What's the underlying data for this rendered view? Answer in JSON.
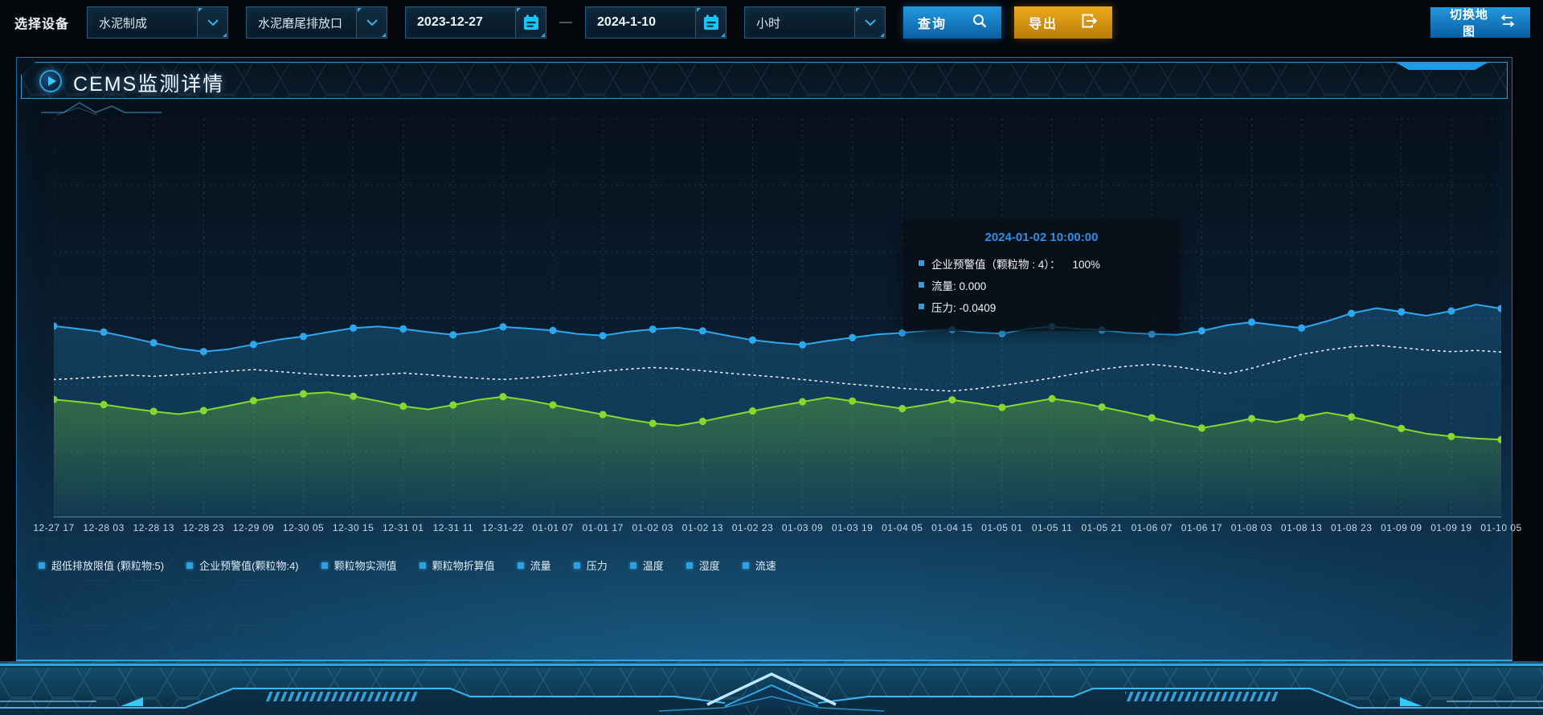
{
  "toolbar": {
    "device_label": "选择设备",
    "selects": [
      {
        "value": "水泥制成"
      },
      {
        "value": "水泥磨尾排放口"
      }
    ],
    "date_start": "2023-12-27",
    "date_separator": "—",
    "date_end": "2024-1-10",
    "interval_select": {
      "value": "小时"
    },
    "query_label": "查询",
    "export_label": "导出",
    "switch_map_label": "切换地图"
  },
  "panel": {
    "title": "CEMS监测详情"
  },
  "tooltip": {
    "title": "2024-01-02 10:00:00",
    "rows": [
      {
        "text": "企业预警值（颗粒物 : 4）：    100%"
      },
      {
        "text": "流量: 0.000"
      },
      {
        "text": "压力: -0.0409"
      }
    ],
    "marker_color": "#2e9fe0"
  },
  "chart_data": {
    "type": "line",
    "title": "CEMS监测详情",
    "x_labels": [
      "12-27 17",
      "12-28 03",
      "12-28 13",
      "12-28 23",
      "12-29 09",
      "12-30 05",
      "12-30 15",
      "12-31 01",
      "12-31 11",
      "12-31-22",
      "01-01 07",
      "01-01 17",
      "01-02 03",
      "01-02 13",
      "01-02 23",
      "01-03 09",
      "01-03 19",
      "01-04 05",
      "01-04 15",
      "01-05 01",
      "01-05 11",
      "01-05 21",
      "01-06 07",
      "01-06 17",
      "01-08 03",
      "01-08 13",
      "01-08 23",
      "01-09 09",
      "01-09 19",
      "01-10 05"
    ],
    "legend": [
      "超低排放限值 (颗粒物:5)",
      "企业预警值(颗粒物:4)",
      "颗粒物实测值",
      "颗粒物折算值",
      "流量",
      "压力",
      "温度",
      "湿度",
      "流速"
    ],
    "legend_position": "bottom",
    "grid": true,
    "y_axis_labels_visible": false,
    "y_unit": "estimated-percent-of-plot-height",
    "series": [
      {
        "name": "series-blue-solid",
        "color": "#2da7ee",
        "style": "solid",
        "area": true,
        "dots": true,
        "values": [
          48.0,
          47.3,
          46.5,
          45.2,
          43.8,
          42.4,
          41.6,
          42.2,
          43.4,
          44.6,
          45.4,
          46.5,
          47.5,
          47.9,
          47.3,
          46.5,
          45.8,
          46.6,
          47.8,
          47.4,
          46.9,
          46.0,
          45.6,
          46.6,
          47.2,
          47.6,
          46.8,
          45.6,
          44.5,
          43.8,
          43.3,
          44.3,
          45.1,
          45.9,
          46.3,
          46.9,
          47.1,
          46.4,
          46.1,
          47.3,
          47.9,
          47.3,
          47.0,
          46.3,
          46.0,
          45.8,
          46.8,
          48.2,
          49.0,
          48.2,
          47.5,
          49.2,
          51.2,
          52.5,
          51.6,
          50.6,
          51.8,
          53.4,
          52.4
        ]
      },
      {
        "name": "series-white-dotted",
        "color": "#e8f0f6",
        "style": "dotted",
        "area": false,
        "dots": false,
        "values": [
          34.6,
          34.9,
          35.3,
          35.7,
          35.4,
          35.8,
          36.2,
          36.7,
          37.1,
          36.6,
          36.1,
          35.7,
          35.4,
          35.8,
          36.2,
          35.8,
          35.3,
          34.9,
          34.6,
          35.0,
          35.5,
          36.1,
          36.7,
          37.2,
          37.6,
          37.3,
          36.8,
          36.2,
          35.7,
          35.2,
          34.6,
          34.0,
          33.4,
          32.9,
          32.4,
          32.0,
          31.7,
          32.3,
          33.1,
          34.0,
          35.0,
          36.1,
          37.2,
          37.9,
          38.4,
          37.8,
          36.9,
          36.0,
          37.4,
          39.2,
          40.9,
          42.0,
          42.8,
          43.2,
          42.6,
          42.0,
          41.6,
          41.9,
          41.5
        ]
      },
      {
        "name": "series-green-solid",
        "color": "#83d92c",
        "style": "solid",
        "area": true,
        "dots": true,
        "values": [
          29.6,
          29.0,
          28.3,
          27.4,
          26.6,
          25.9,
          26.8,
          28.0,
          29.3,
          30.3,
          31.0,
          31.4,
          30.4,
          29.2,
          27.9,
          27.1,
          28.2,
          29.5,
          30.3,
          29.4,
          28.2,
          27.0,
          25.8,
          24.6,
          23.6,
          23.0,
          24.1,
          25.4,
          26.7,
          27.9,
          29.0,
          30.1,
          29.2,
          28.2,
          27.3,
          28.3,
          29.5,
          28.6,
          27.6,
          28.7,
          29.8,
          28.9,
          27.7,
          26.4,
          25.0,
          23.6,
          22.4,
          23.5,
          24.8,
          23.9,
          25.1,
          26.3,
          25.2,
          23.8,
          22.3,
          21.0,
          20.3,
          19.8,
          19.5
        ]
      }
    ]
  },
  "colors": {
    "accent_blue": "#2da7ee",
    "accent_green": "#83d92c",
    "accent_cyan": "#19c6f5",
    "export_orange": "#d99410",
    "panel_border": "#1b6ea6",
    "grid_line": "rgba(150,190,215,0.22)"
  }
}
